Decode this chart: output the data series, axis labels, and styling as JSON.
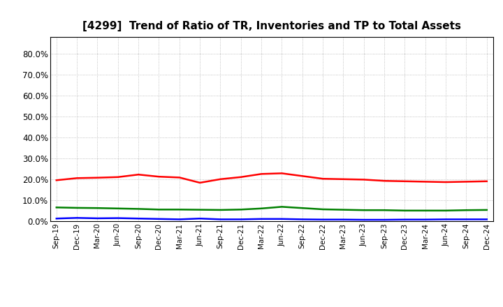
{
  "title": "[4299]  Trend of Ratio of TR, Inventories and TP to Total Assets",
  "labels": [
    "Sep-19",
    "Dec-19",
    "Mar-20",
    "Jun-20",
    "Sep-20",
    "Dec-20",
    "Mar-21",
    "Jun-21",
    "Sep-21",
    "Dec-21",
    "Mar-22",
    "Jun-22",
    "Sep-22",
    "Dec-22",
    "Mar-23",
    "Jun-23",
    "Sep-23",
    "Dec-23",
    "Mar-24",
    "Jun-24",
    "Sep-24",
    "Dec-24"
  ],
  "trade_receivables": [
    0.195,
    0.205,
    0.207,
    0.21,
    0.222,
    0.212,
    0.208,
    0.183,
    0.2,
    0.21,
    0.225,
    0.228,
    0.215,
    0.202,
    0.2,
    0.198,
    0.192,
    0.19,
    0.188,
    0.186,
    0.188,
    0.19
  ],
  "inventories": [
    0.012,
    0.015,
    0.013,
    0.014,
    0.012,
    0.01,
    0.008,
    0.012,
    0.008,
    0.008,
    0.01,
    0.01,
    0.008,
    0.007,
    0.007,
    0.006,
    0.006,
    0.007,
    0.007,
    0.008,
    0.008,
    0.008
  ],
  "trade_payables": [
    0.065,
    0.063,
    0.062,
    0.06,
    0.058,
    0.055,
    0.055,
    0.054,
    0.053,
    0.055,
    0.06,
    0.068,
    0.062,
    0.056,
    0.054,
    0.052,
    0.052,
    0.05,
    0.05,
    0.05,
    0.052,
    0.053
  ],
  "tr_color": "#ff0000",
  "inv_color": "#0000ff",
  "tp_color": "#008000",
  "ylim": [
    0.0,
    0.88
  ],
  "yticks": [
    0.0,
    0.1,
    0.2,
    0.3,
    0.4,
    0.5,
    0.6,
    0.7,
    0.8
  ],
  "background_color": "#ffffff",
  "grid_color": "#b0b0b0"
}
